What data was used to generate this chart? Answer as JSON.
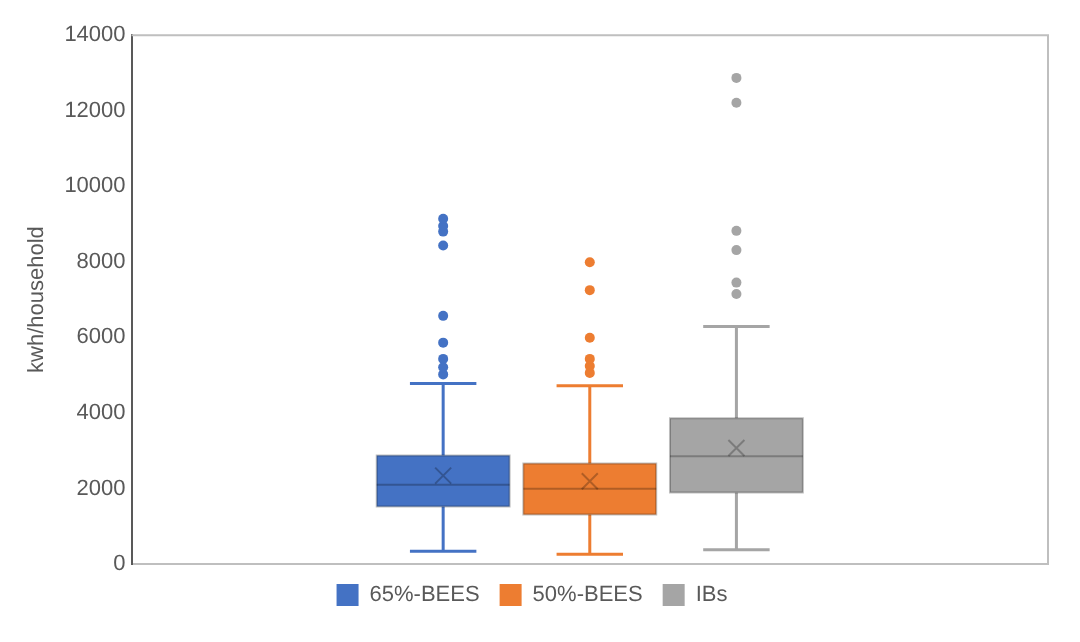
{
  "chart_data": {
    "type": "box",
    "ylabel": "kwh/household",
    "categories": [
      null
    ],
    "ylim": [
      0,
      14000
    ],
    "yticks": [
      0,
      2000,
      4000,
      6000,
      8000,
      10000,
      12000,
      14000
    ],
    "grid": false,
    "legend": "bottom",
    "series": [
      {
        "name": "65%-BEES",
        "color": "#4472c4",
        "boxes": [
          {
            "low": 340,
            "q1": 1520,
            "median": 2100,
            "q3": 2870,
            "high": 4780,
            "mean": 2340,
            "outliers": [
              5020,
              5210,
              5430,
              5860,
              6570,
              8430,
              8800,
              8950,
              9140
            ]
          }
        ]
      },
      {
        "name": "50%-BEES",
        "color": "#ed7d31",
        "boxes": [
          {
            "low": 260,
            "q1": 1310,
            "median": 1990,
            "q3": 2660,
            "high": 4720,
            "mean": 2190,
            "outliers": [
              5060,
              5240,
              5430,
              5990,
              7250,
              7990
            ]
          }
        ]
      },
      {
        "name": "IBs",
        "color": "#a5a5a5",
        "boxes": [
          {
            "low": 380,
            "q1": 1890,
            "median": 2850,
            "q3": 3860,
            "high": 6290,
            "mean": 3070,
            "outliers": [
              7150,
              7450,
              8310,
              8820,
              12210,
              12870
            ]
          }
        ]
      }
    ]
  }
}
